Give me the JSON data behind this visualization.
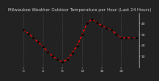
{
  "title": "Milwaukee Weather Outdoor Temperature per Hour (Last 24 Hours)",
  "hours": [
    0,
    1,
    2,
    3,
    4,
    5,
    6,
    7,
    8,
    9,
    10,
    11,
    12,
    13,
    14,
    15,
    16,
    17,
    18,
    19,
    20,
    21,
    22,
    23
  ],
  "temps": [
    34,
    31,
    27,
    23,
    19,
    14,
    10,
    7,
    5,
    7,
    13,
    20,
    30,
    40,
    44,
    41,
    38,
    36,
    34,
    30,
    27,
    27,
    27,
    27
  ],
  "line_color": "#ff0000",
  "marker_color": "#000000",
  "background_color": "#222222",
  "plot_bg_color": "#222222",
  "grid_color": "#555555",
  "title_color": "#cccccc",
  "tick_color": "#cccccc",
  "ylim": [
    0,
    50
  ],
  "yticks": [
    10,
    20,
    30,
    40
  ],
  "xtick_step": 4,
  "title_fontsize": 3.8,
  "tick_fontsize": 3.2,
  "line_width": 0.9,
  "marker_size": 1.8
}
